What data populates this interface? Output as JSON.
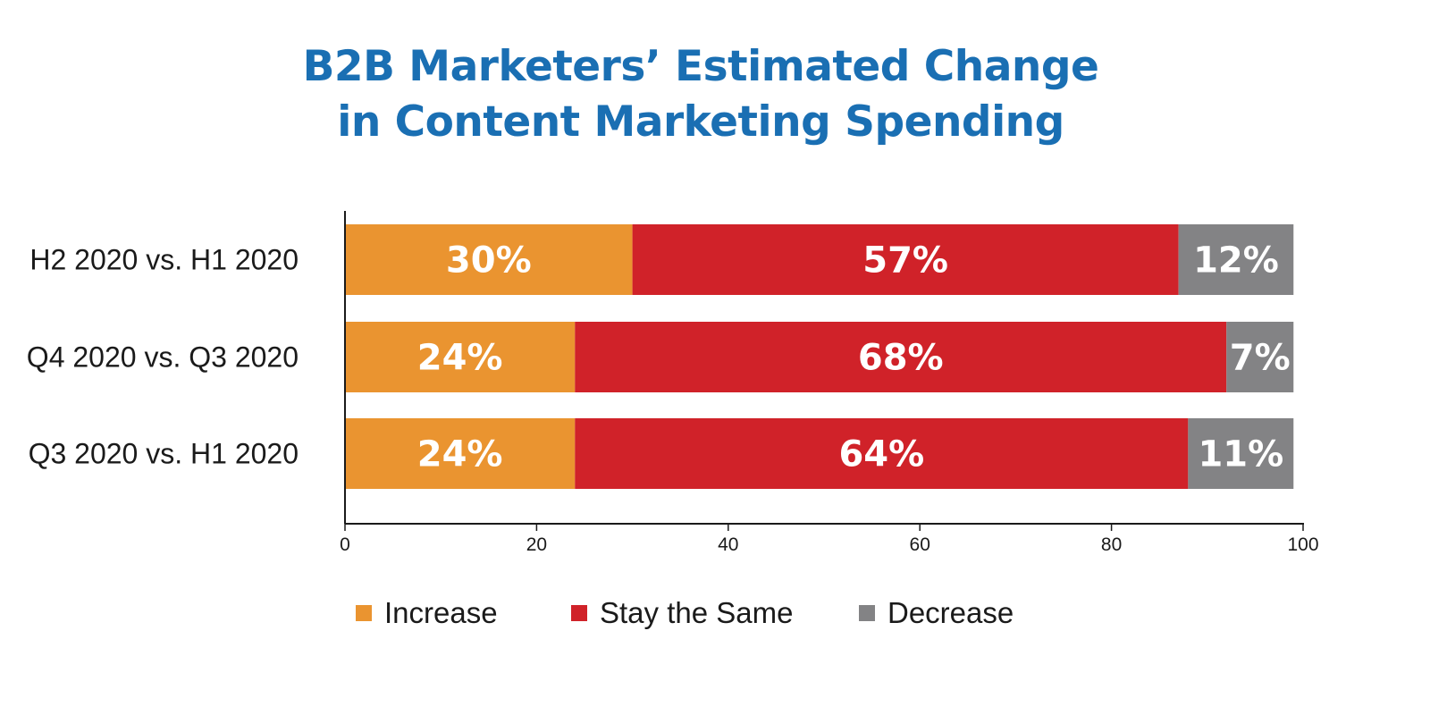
{
  "chart_data": {
    "type": "bar",
    "orientation": "horizontal",
    "stacked": true,
    "title": [
      "B2B Marketers’ Estimated Change",
      "in Content Marketing Spending"
    ],
    "categories": [
      "H2 2020 vs. H1 2020",
      "Q4 2020 vs. Q3 2020",
      "Q3 2020 vs. H1 2020"
    ],
    "series": [
      {
        "name": "Increase",
        "color": "#ea9430",
        "values": [
          30,
          24,
          24
        ],
        "labels": [
          "30%",
          "24%",
          "24%"
        ]
      },
      {
        "name": "Stay the Same",
        "color": "#d02229",
        "values": [
          57,
          68,
          64
        ],
        "labels": [
          "57%",
          "68%",
          "64%"
        ]
      },
      {
        "name": "Decrease",
        "color": "#838385",
        "values": [
          12,
          7,
          11
        ],
        "labels": [
          "12%",
          "7%",
          "11%"
        ]
      }
    ],
    "xlim": [
      0,
      100
    ],
    "xticks": [
      0,
      20,
      40,
      60,
      80,
      100
    ],
    "xlabel": "",
    "ylabel": "",
    "grid": false,
    "legend_position": "bottom"
  },
  "colors": {
    "title": "#1a6fb3",
    "axis": "#1a1a1a"
  }
}
